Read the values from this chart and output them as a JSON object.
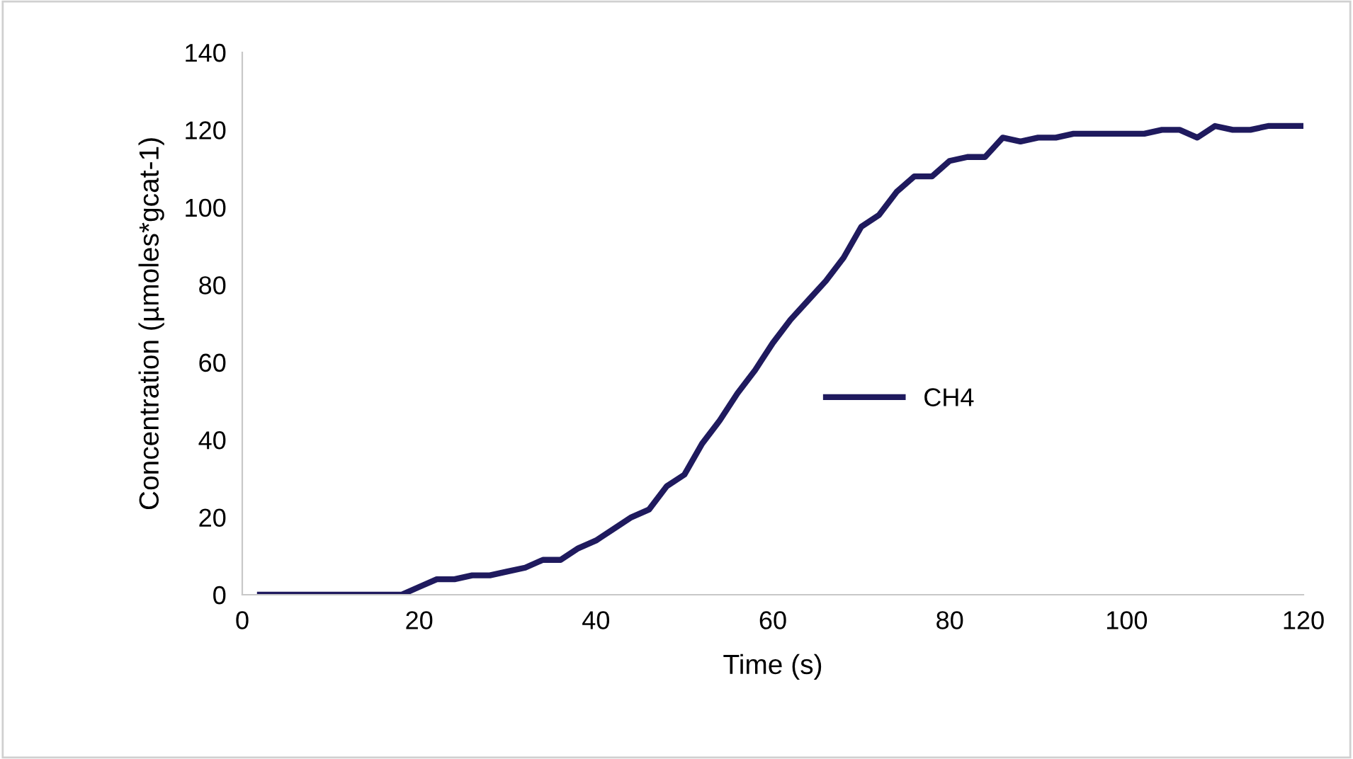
{
  "chart_data": {
    "type": "line",
    "xlabel": "Time (s)",
    "ylabel": "Concentration (µmoles*gcat-1)",
    "x": [
      2,
      4,
      6,
      8,
      10,
      12,
      14,
      16,
      18,
      20,
      22,
      24,
      26,
      28,
      30,
      32,
      34,
      36,
      38,
      40,
      42,
      44,
      46,
      48,
      50,
      52,
      54,
      56,
      58,
      60,
      62,
      64,
      66,
      68,
      70,
      72,
      74,
      76,
      78,
      80,
      82,
      84,
      86,
      88,
      90,
      92,
      94,
      96,
      98,
      100,
      102,
      104,
      106,
      108,
      110,
      112,
      114,
      116,
      118,
      120
    ],
    "series": [
      {
        "name": "CH4",
        "color": "#1f1a5e",
        "values": [
          0,
          0,
          0,
          0,
          0,
          0,
          0,
          0,
          0,
          2,
          4,
          4,
          5,
          5,
          6,
          7,
          9,
          9,
          12,
          14,
          17,
          20,
          22,
          28,
          31,
          39,
          45,
          52,
          58,
          65,
          71,
          76,
          81,
          87,
          95,
          98,
          104,
          108,
          108,
          112,
          113,
          113,
          118,
          117,
          118,
          118,
          119,
          119,
          119,
          119,
          119,
          120,
          120,
          118,
          121,
          120,
          120,
          121,
          121,
          121
        ]
      }
    ],
    "xlim": [
      0,
      120
    ],
    "xticks": [
      0,
      20,
      40,
      60,
      80,
      100,
      120
    ],
    "ylim": [
      0,
      140
    ],
    "yticks": [
      0,
      20,
      40,
      60,
      80,
      100,
      120,
      140
    ],
    "grid": false,
    "legend": "center",
    "marker": "none",
    "line_style": "solid"
  }
}
